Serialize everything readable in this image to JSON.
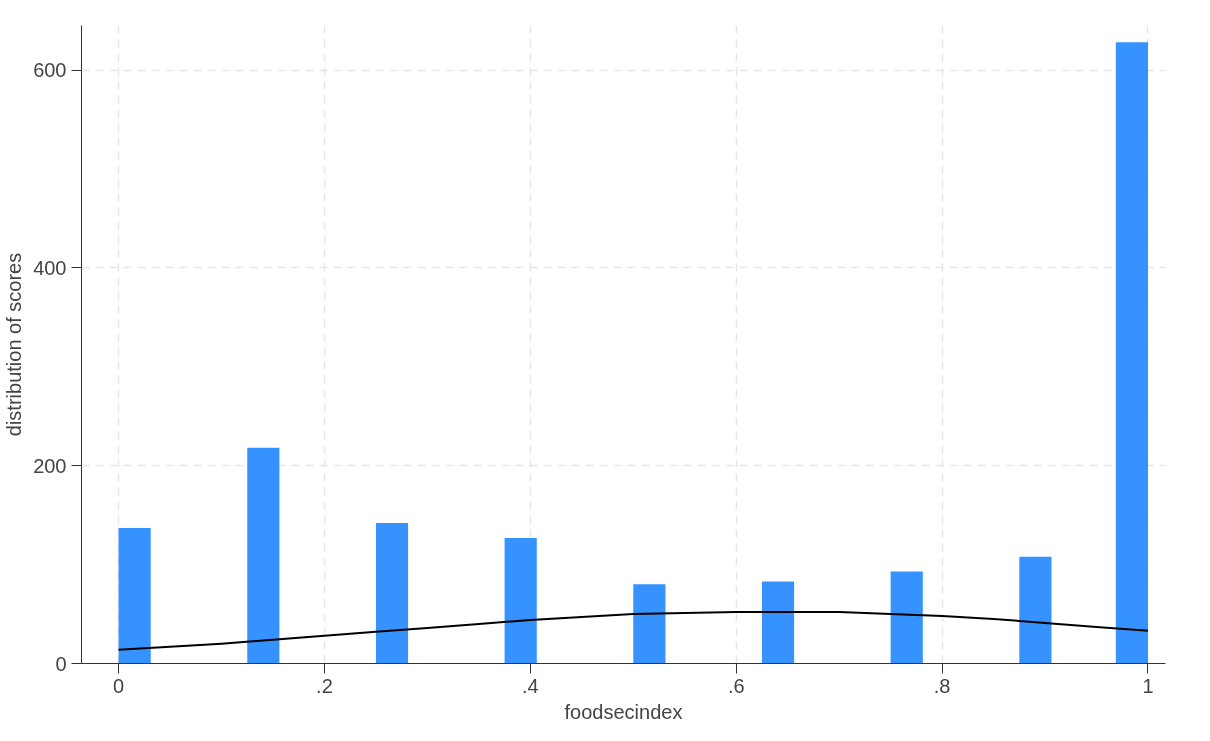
{
  "chart_data": {
    "type": "histogram",
    "xlabel": "foodsecindex",
    "ylabel": "distribution of scores",
    "bins": [
      0,
      0.03125,
      0.0625,
      0.09375,
      0.125,
      0.15625,
      0.1875,
      0.21875,
      0.25,
      0.28125,
      0.3125,
      0.34375,
      0.375,
      0.40625,
      0.4375,
      0.46875,
      0.5,
      0.53125,
      0.5625,
      0.59375,
      0.625,
      0.65625,
      0.6875,
      0.71875,
      0.75,
      0.78125,
      0.8125,
      0.84375,
      0.875,
      0.90625,
      0.9375,
      0.96875,
      1
    ],
    "values": [
      137,
      0,
      0,
      0,
      218,
      0,
      0,
      0,
      142,
      0,
      0,
      0,
      127,
      0,
      0,
      0,
      80,
      0,
      0,
      0,
      83,
      0,
      0,
      0,
      93,
      0,
      0,
      0,
      108,
      0,
      0,
      628
    ],
    "color": "#3592fe",
    "series": [
      {
        "type": "line",
        "color": "#000000",
        "x": [
          0,
          0.05,
          0.1,
          0.15,
          0.2,
          0.25,
          0.3,
          0.35,
          0.4,
          0.45,
          0.5,
          0.55,
          0.6,
          0.65,
          0.7,
          0.75,
          0.8,
          0.85,
          0.9,
          0.95,
          1
        ],
        "values": [
          14,
          17,
          20,
          24,
          28,
          32,
          36,
          40,
          44,
          47,
          50,
          51,
          52,
          52,
          52,
          50,
          48,
          45,
          41,
          37,
          33
        ]
      }
    ],
    "xlim": [
      -0.036,
      1.017
    ],
    "ylim": [
      0,
      645
    ],
    "xticks": [
      {
        "value": 0,
        "label": "0"
      },
      {
        "value": 0.2,
        "label": ".2"
      },
      {
        "value": 0.4,
        "label": ".4"
      },
      {
        "value": 0.6,
        "label": ".6"
      },
      {
        "value": 0.8,
        "label": ".8"
      },
      {
        "value": 1,
        "label": "1"
      }
    ],
    "yticks": [
      0,
      200,
      400,
      600
    ],
    "grid": true,
    "line_style": "solid"
  }
}
